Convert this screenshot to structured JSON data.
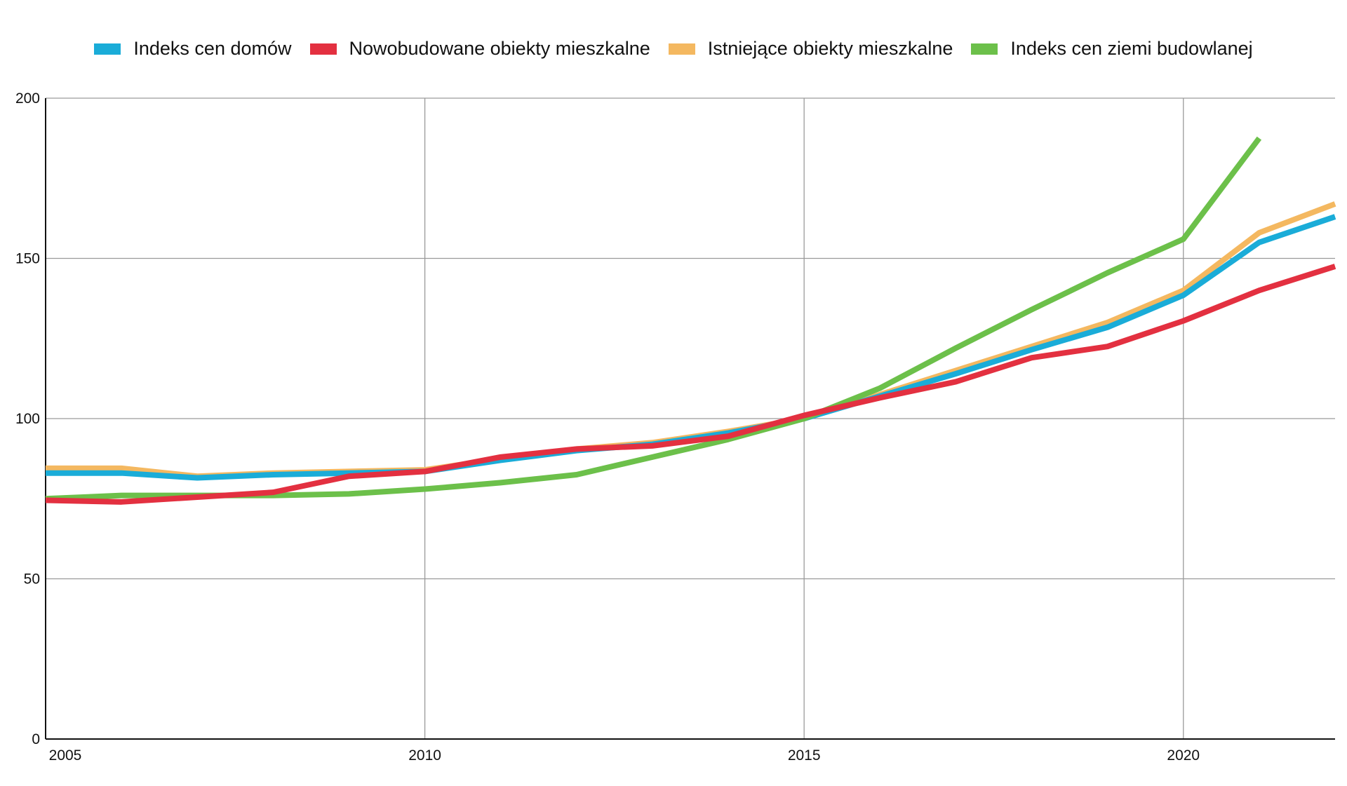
{
  "chart_data": {
    "type": "line",
    "title": "",
    "xlabel": "",
    "ylabel": "",
    "x": [
      2005,
      2006,
      2007,
      2008,
      2009,
      2010,
      2011,
      2012,
      2013,
      2014,
      2015,
      2016,
      2017,
      2018,
      2019,
      2020,
      2021,
      2022
    ],
    "xlim": [
      2005,
      2022
    ],
    "ylim": [
      0,
      200
    ],
    "xticks": [
      2005,
      2010,
      2015,
      2020
    ],
    "yticks": [
      0,
      50,
      100,
      150,
      200
    ],
    "grid": true,
    "legend_position": "top-center",
    "series": [
      {
        "name": "Istniejące obiekty mieszkalne",
        "color": "#F4B860",
        "values": [
          84.5,
          84.5,
          82,
          83,
          83.5,
          84,
          87.5,
          90.5,
          92.5,
          96,
          100,
          107.5,
          115,
          122.5,
          130,
          140,
          158,
          167
        ]
      },
      {
        "name": "Indeks cen domów",
        "color": "#1AACD8",
        "values": [
          83,
          83,
          81.5,
          82.5,
          83,
          83.5,
          87,
          90,
          92,
          95.5,
          100,
          107,
          114,
          121.5,
          128.5,
          138.5,
          155,
          163
        ]
      },
      {
        "name": "Indeks cen ziemi budowlanej",
        "color": "#6CC04A",
        "values": [
          75,
          76,
          76,
          76,
          76.5,
          78,
          80,
          82.5,
          88,
          93.5,
          100,
          109.5,
          122,
          134,
          145.5,
          156,
          187.5,
          null
        ]
      },
      {
        "name": "Nowobudowane obiekty mieszkalne",
        "color": "#E33040",
        "values": [
          74.5,
          74,
          75.5,
          77,
          82,
          83.5,
          88,
          90.5,
          91.5,
          94.5,
          101,
          106.5,
          111.5,
          119,
          122.5,
          130.5,
          140,
          147.5
        ]
      }
    ],
    "legend_order": [
      1,
      3,
      0,
      2
    ]
  }
}
